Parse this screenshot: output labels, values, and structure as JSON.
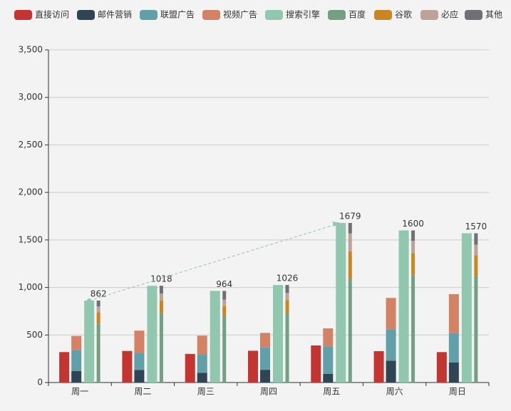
{
  "chart_data": {
    "type": "bar",
    "categories": [
      "周一",
      "周二",
      "周三",
      "周四",
      "周五",
      "周六",
      "周日"
    ],
    "series": [
      {
        "name": "直接访问",
        "color": "#c23531",
        "values": [
          320,
          332,
          301,
          334,
          390,
          330,
          320
        ]
      },
      {
        "name": "邮件营销",
        "color": "#2f4554",
        "stack": "广告",
        "values": [
          120,
          132,
          101,
          134,
          90,
          230,
          210
        ]
      },
      {
        "name": "联盟广告",
        "color": "#61a0a8",
        "stack": "广告",
        "values": [
          220,
          182,
          191,
          234,
          290,
          330,
          310
        ]
      },
      {
        "name": "视频广告",
        "color": "#d48265",
        "stack": "广告",
        "values": [
          150,
          232,
          201,
          154,
          190,
          330,
          410
        ]
      },
      {
        "name": "搜索引擎",
        "color": "#91c7ae",
        "values": [
          862,
          1018,
          964,
          1026,
          1679,
          1600,
          1570
        ]
      },
      {
        "name": "百度",
        "color": "#749f83",
        "stack": "搜索引擎",
        "values": [
          620,
          732,
          701,
          734,
          1090,
          1130,
          1120
        ]
      },
      {
        "name": "谷歌",
        "color": "#ca8622",
        "stack": "搜索引擎",
        "values": [
          120,
          132,
          101,
          134,
          290,
          230,
          220
        ]
      },
      {
        "name": "必应",
        "color": "#bda29a",
        "stack": "搜索引擎",
        "values": [
          60,
          72,
          71,
          74,
          190,
          130,
          110
        ]
      },
      {
        "name": "其他",
        "color": "#6e7074",
        "stack": "搜索引擎",
        "values": [
          62,
          82,
          91,
          84,
          109,
          110,
          120
        ]
      }
    ],
    "ylim": [
      0,
      3500
    ],
    "yticks": [
      0,
      {
        "value": 500,
        "label": "500"
      },
      {
        "value": 1000,
        "label": "1,000"
      },
      {
        "value": 1500,
        "label": "1,500"
      },
      {
        "value": 2000,
        "label": "2,000"
      },
      {
        "value": 2500,
        "label": "2,500"
      },
      {
        "value": 3000,
        "label": "3,000"
      },
      {
        "value": 3500,
        "label": "3,500"
      }
    ],
    "grid": true
  }
}
